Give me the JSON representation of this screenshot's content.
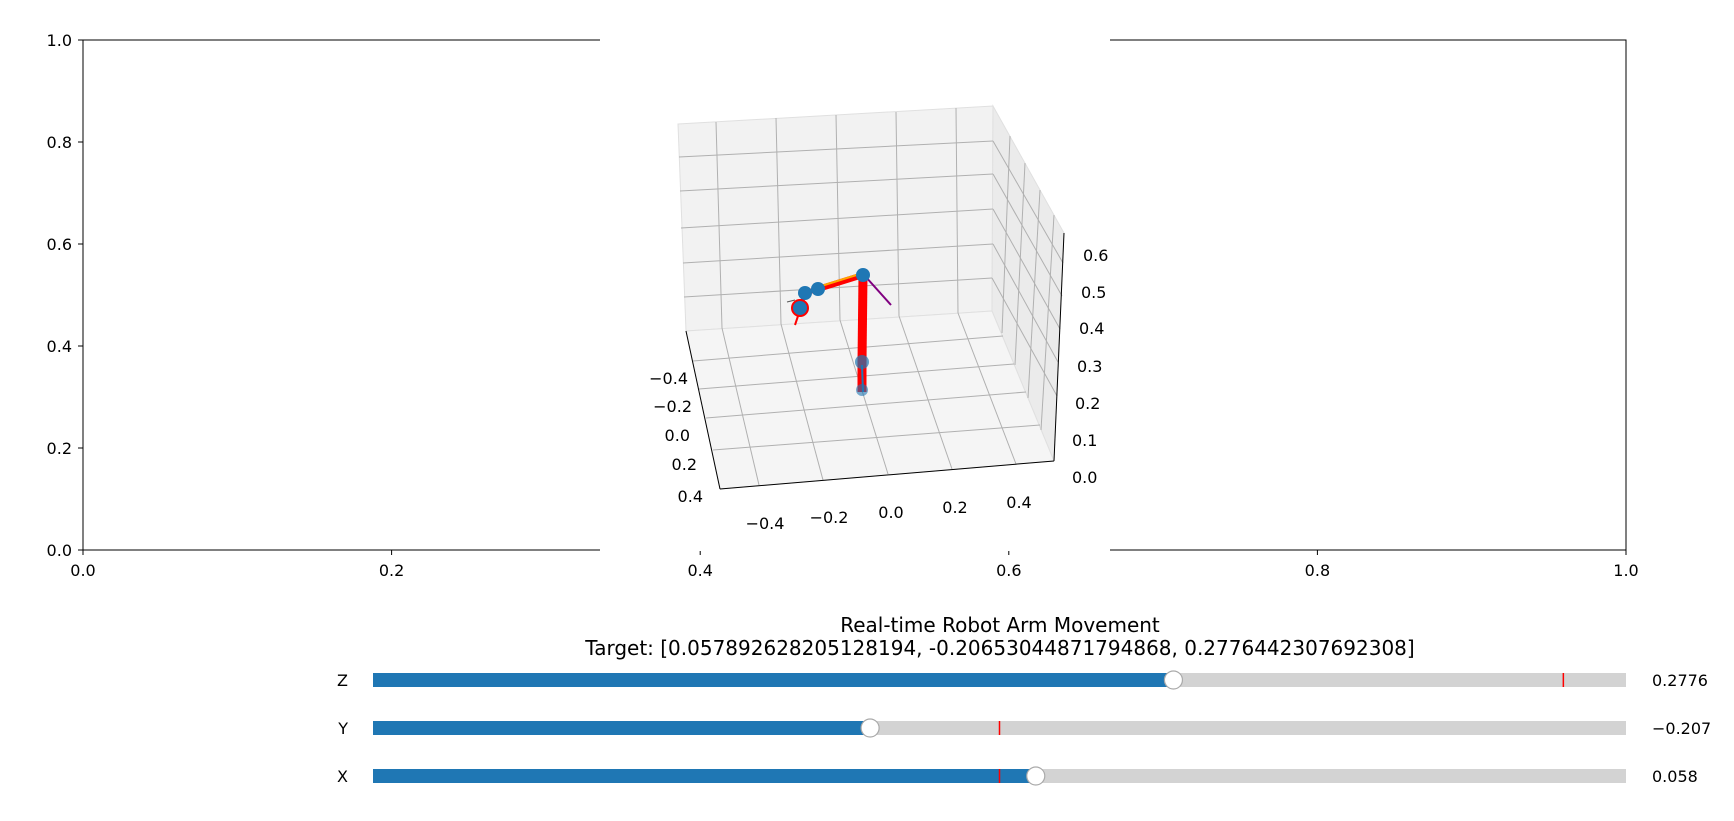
{
  "figure": {
    "title_line1": "Real-time Robot Arm Movement",
    "title_line2": "Target: [0.057892628205128194, -0.20653044871794868, 0.2776442307692308]"
  },
  "outer_axes": {
    "x_ticks": [
      "0.0",
      "0.2",
      "0.4",
      "0.6",
      "0.8",
      "1.0"
    ],
    "y_ticks": [
      "0.0",
      "0.2",
      "0.4",
      "0.6",
      "0.8",
      "1.0"
    ]
  },
  "axes3d": {
    "x_ticks": [
      "−0.4",
      "−0.2",
      "0.0",
      "0.2",
      "0.4"
    ],
    "y_ticks": [
      "−0.4",
      "−0.2",
      "0.0",
      "0.2",
      "0.4"
    ],
    "z_ticks": [
      "0.0",
      "0.1",
      "0.2",
      "0.3",
      "0.4",
      "0.5",
      "0.6"
    ]
  },
  "sliders": [
    {
      "label": "Z",
      "value": 0.2776442307692308,
      "value_text": "0.2776",
      "min": -1.0,
      "max": 1.0,
      "initial": 0.9
    },
    {
      "label": "Y",
      "value": -0.20653044871794868,
      "value_text": "−0.207",
      "min": -1.0,
      "max": 1.0,
      "initial": 0.0
    },
    {
      "label": "X",
      "value": 0.057892628205128194,
      "value_text": "0.058",
      "min": -1.0,
      "max": 1.0,
      "initial": 0.0
    }
  ],
  "colors": {
    "slider_fill": "#1f77b4",
    "slider_track": "#d3d3d3",
    "initial_marker": "#ff0000",
    "arm_link": "#ff0000",
    "arm_highlight": "#ffa500",
    "joint": "#1f77b4",
    "pane": "#f2f2f2",
    "grid": "#b0b0b0",
    "orientation_line": "#800080"
  },
  "chart_data": {
    "type": "line",
    "title": "Real-time Robot Arm Movement",
    "series": [
      {
        "values": [
          [
            0.0,
            0.0,
            0.0
          ],
          [
            0.0,
            0.0,
            0.2
          ],
          [
            0.0,
            0.0,
            0.6
          ],
          [
            -0.3,
            0.05,
            0.6
          ],
          [
            -0.4,
            0.05,
            0.55
          ],
          [
            -0.45,
            0.1,
            0.45
          ]
        ]
      }
    ],
    "target": [
      0.057892628205128194,
      -0.20653044871794868,
      0.2776442307692308
    ],
    "xlim": [
      -0.5,
      0.5
    ],
    "ylim": [
      -0.5,
      0.5
    ],
    "zlim": [
      0.0,
      0.6
    ],
    "grid": true
  }
}
